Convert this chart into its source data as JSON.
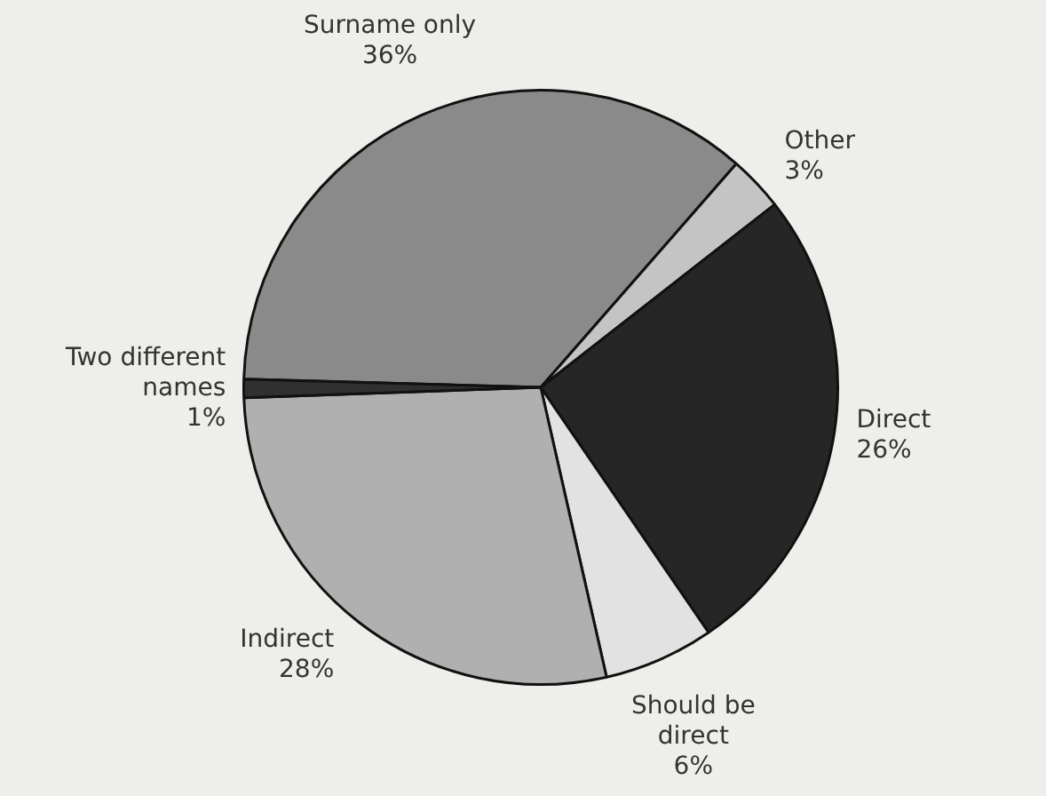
{
  "chart_data": {
    "type": "pie",
    "categories": [
      "Surname only",
      "Other",
      "Direct",
      "Should be direct",
      "Indirect",
      "Two different names"
    ],
    "values": [
      36,
      3,
      26,
      6,
      28,
      1
    ],
    "colors": [
      "#8a8a8a",
      "#c4c4c4",
      "#262626",
      "#e2e2e2",
      "#b0b0b0",
      "#303030"
    ],
    "value_labels": [
      "36%",
      "3%",
      "26%",
      "6%",
      "28%",
      "1%"
    ]
  }
}
